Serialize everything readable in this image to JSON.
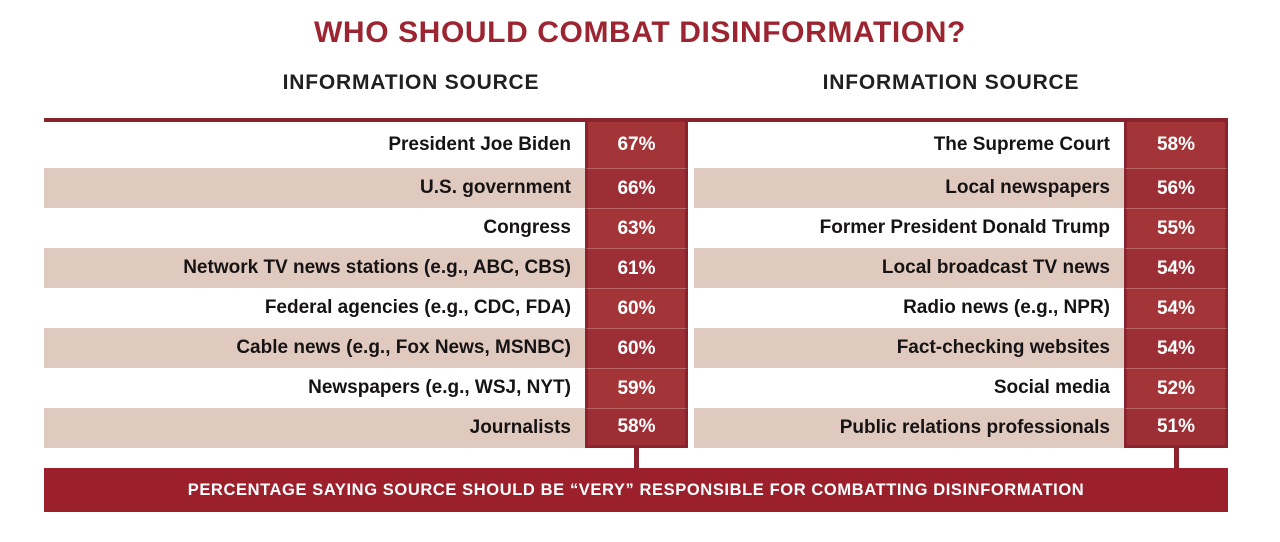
{
  "title": "WHO SHOULD COMBAT DISINFORMATION?",
  "tables": [
    {
      "header": "INFORMATION SOURCE",
      "rows": [
        {
          "label": "President Joe Biden",
          "value": "67%"
        },
        {
          "label": "U.S. government",
          "value": "66%"
        },
        {
          "label": "Congress",
          "value": "63%"
        },
        {
          "label": "Network TV news stations (e.g., ABC, CBS)",
          "value": "61%"
        },
        {
          "label": "Federal agencies (e.g., CDC, FDA)",
          "value": "60%"
        },
        {
          "label": "Cable news (e.g., Fox News, MSNBC)",
          "value": "60%"
        },
        {
          "label": "Newspapers (e.g., WSJ, NYT)",
          "value": "59%"
        },
        {
          "label": "Journalists",
          "value": "58%"
        }
      ]
    },
    {
      "header": "INFORMATION SOURCE",
      "rows": [
        {
          "label": "The Supreme Court",
          "value": "58%"
        },
        {
          "label": "Local newspapers",
          "value": "56%"
        },
        {
          "label": "Former President Donald Trump",
          "value": "55%"
        },
        {
          "label": "Local broadcast TV news",
          "value": "54%"
        },
        {
          "label": "Radio news (e.g., NPR)",
          "value": "54%"
        },
        {
          "label": "Fact-checking websites",
          "value": "54%"
        },
        {
          "label": "Social media",
          "value": "52%"
        },
        {
          "label": "Public relations professionals",
          "value": "51%"
        }
      ]
    }
  ],
  "footer": "PERCENTAGE SAYING SOURCE SHOULD BE “VERY” RESPONSIBLE FOR COMBATTING DISINFORMATION",
  "colors": {
    "title_red": "#9C2531",
    "banner_red": "#9C202C",
    "percent_cell_red": "#A33539",
    "percent_cell_red_alt": "#9C2F35",
    "border_red": "#8A232E",
    "stripe_tan": "#E0CABF",
    "text_black": "#221F20",
    "value_text": "#FFFFFF"
  },
  "chart_data": {
    "type": "table",
    "title": "WHO SHOULD COMBAT DISINFORMATION?",
    "note": "PERCENTAGE SAYING SOURCE SHOULD BE “VERY” RESPONSIBLE FOR COMBATTING DISINFORMATION",
    "unit": "percent",
    "tables": [
      {
        "header": "INFORMATION SOURCE",
        "categories": [
          "President Joe Biden",
          "U.S. government",
          "Congress",
          "Network TV news stations (e.g., ABC, CBS)",
          "Federal agencies (e.g., CDC, FDA)",
          "Cable news (e.g., Fox News, MSNBC)",
          "Newspapers (e.g., WSJ, NYT)",
          "Journalists"
        ],
        "values": [
          67,
          66,
          63,
          61,
          60,
          60,
          59,
          58
        ]
      },
      {
        "header": "INFORMATION SOURCE",
        "categories": [
          "The Supreme Court",
          "Local newspapers",
          "Former President Donald Trump",
          "Local broadcast TV news",
          "Radio news (e.g., NPR)",
          "Fact-checking websites",
          "Social media",
          "Public relations professionals"
        ],
        "values": [
          58,
          56,
          55,
          54,
          54,
          54,
          52,
          51
        ]
      }
    ]
  }
}
